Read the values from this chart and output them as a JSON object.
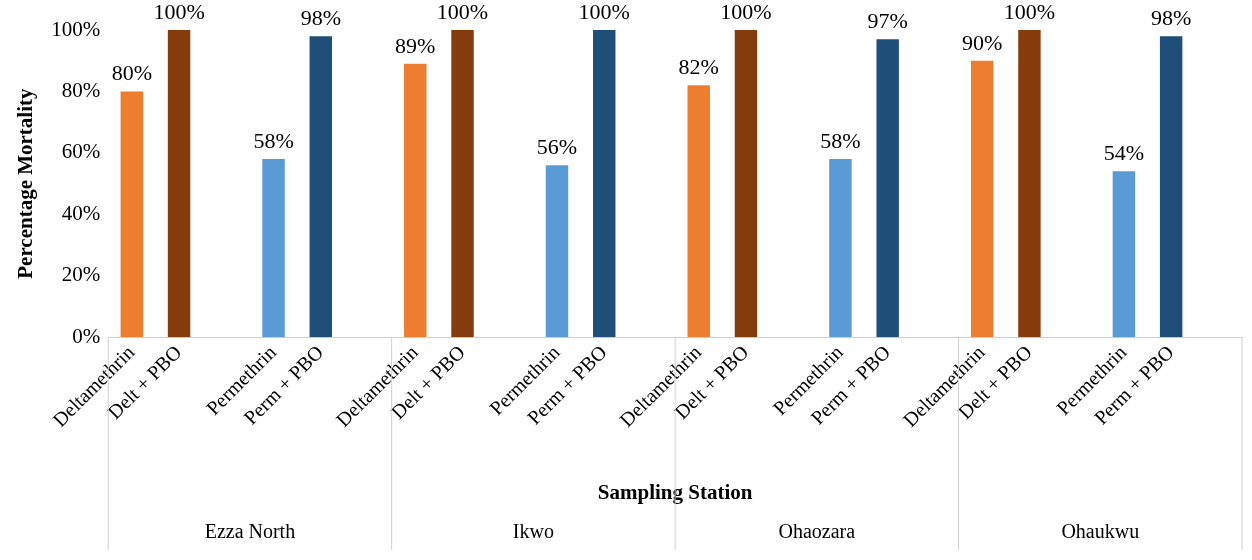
{
  "chart_data": {
    "type": "bar",
    "xlabel": "Sampling Station",
    "ylabel": "Percentage Mortality",
    "categories": [
      "Deltamethrin",
      "Delt + PBO",
      null,
      "Permethrin",
      "Perm + PBO",
      null,
      "Deltamethrin",
      "Delt + PBO",
      null,
      "Permethrin",
      "Perm + PBO",
      null,
      "Deltamethrin",
      "Delt + PBO",
      null,
      "Permethrin",
      "Perm + PBO",
      null,
      "Deltamethrin",
      "Delt + PBO",
      null,
      "Permethrin",
      "Perm + PBO",
      null
    ],
    "values": [
      80,
      100,
      null,
      58,
      98,
      null,
      89,
      100,
      null,
      56,
      100,
      null,
      82,
      100,
      null,
      58,
      97,
      null,
      90,
      100,
      null,
      54,
      98,
      null
    ],
    "colors": [
      "#ed7d31",
      "#843c0c",
      "#ffffff",
      "#5b9bd5",
      "#1f4e79",
      "#ffffff",
      "#ed7d31",
      "#843c0c",
      "#ffffff",
      "#5b9bd5",
      "#1f4e79",
      "#ffffff",
      "#ed7d31",
      "#843c0c",
      "#ffffff",
      "#5b9bd5",
      "#1f4e79",
      "#ffffff",
      "#ed7d31",
      "#843c0c",
      "#ffffff",
      "#5b9bd5",
      "#1f4e79",
      "#ffffff"
    ],
    "value_labels": [
      "80%",
      "100%",
      null,
      "58%",
      "98%",
      null,
      "89%",
      "100%",
      null,
      "56%",
      "100%",
      null,
      "82%",
      "100%",
      null,
      "58%",
      "97%",
      null,
      "90%",
      "100%",
      null,
      "54%",
      "98%",
      null
    ],
    "ylim": [
      0,
      100
    ],
    "yticks": [
      {
        "value": 0,
        "label": "0%"
      },
      {
        "value": 20,
        "label": "20%"
      },
      {
        "value": 40,
        "label": "40%"
      },
      {
        "value": 60,
        "label": "60%"
      },
      {
        "value": 80,
        "label": "80%"
      },
      {
        "value": 100,
        "label": "100%"
      }
    ],
    "annotations": [
      "Ezza North",
      "Ikwo",
      "Ohaozara",
      "Ohaukwu"
    ],
    "grid": false,
    "legend": false
  }
}
